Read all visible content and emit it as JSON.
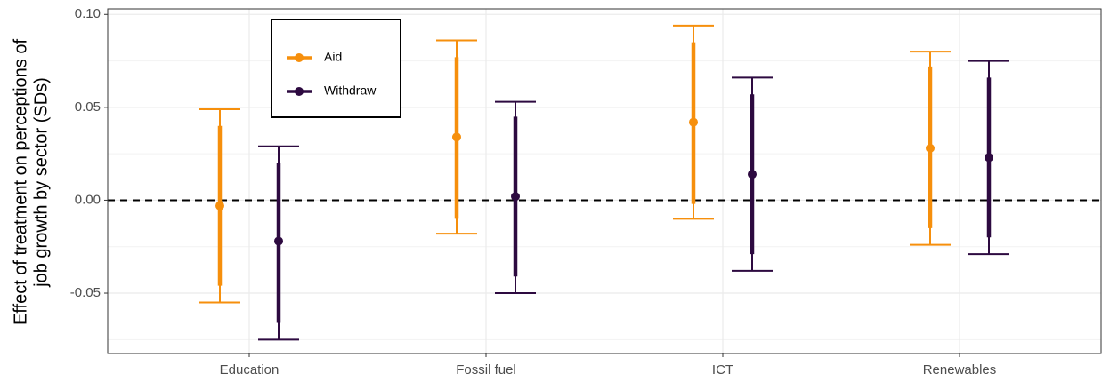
{
  "chart_data": {
    "type": "pointrange",
    "y_label": [
      "Effect of treatment on perceptions of",
      "job growth by sector (SDs)"
    ],
    "categories": [
      "Education",
      "Fossil fuel",
      "ICT",
      "Renewables"
    ],
    "series": [
      {
        "name": "Aid",
        "color": "#f68f0c",
        "values": [
          -0.003,
          0.034,
          0.042,
          0.028
        ],
        "inner_lower": [
          -0.046,
          -0.01,
          -0.002,
          -0.015
        ],
        "inner_upper": [
          0.04,
          0.077,
          0.085,
          0.072
        ],
        "lower": [
          -0.055,
          -0.018,
          -0.01,
          -0.024
        ],
        "upper": [
          0.049,
          0.086,
          0.094,
          0.08
        ]
      },
      {
        "name": "Withdraw",
        "color": "#2d0a40",
        "values": [
          -0.022,
          0.002,
          0.014,
          0.023
        ],
        "inner_lower": [
          -0.066,
          -0.041,
          -0.029,
          -0.02
        ],
        "inner_upper": [
          0.02,
          0.045,
          0.057,
          0.066
        ],
        "lower": [
          -0.075,
          -0.05,
          -0.038,
          -0.029
        ],
        "upper": [
          0.029,
          0.053,
          0.066,
          0.075
        ]
      }
    ],
    "ylim": [
      -0.0825,
      0.103
    ],
    "yticks": [
      -0.05,
      {
        "value": 0,
        "label": "0.00"
      },
      0.05,
      {
        "value": 0.1,
        "label": "0.10"
      }
    ],
    "minor_yticks": [
      -0.075,
      -0.025,
      0.025,
      0.075
    ],
    "hline": 0,
    "grid": true
  }
}
